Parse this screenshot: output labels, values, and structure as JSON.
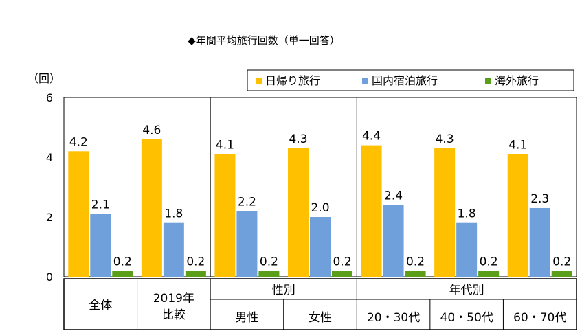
{
  "chart_data": {
    "type": "bar",
    "title": "◆年間平均旅行回数（単一回答）",
    "ylabel": "（回）",
    "ylim": [
      0,
      6
    ],
    "yticks": [
      0,
      2,
      4,
      6
    ],
    "categories": [
      "全体",
      "2019年比較",
      "男性",
      "女性",
      "20・30代",
      "40・50代",
      "60・70代"
    ],
    "series": [
      {
        "name": "日帰り旅行",
        "color": "#FFC000",
        "values": [
          4.2,
          4.6,
          4.1,
          4.3,
          4.4,
          4.3,
          4.1
        ],
        "labels": [
          "4.2",
          "4.6",
          "4.1",
          "4.3",
          "4.4",
          "4.3",
          "4.1"
        ]
      },
      {
        "name": "国内宿泊旅行",
        "color": "#6FA0DC",
        "values": [
          2.1,
          1.8,
          2.2,
          2.0,
          2.4,
          1.8,
          2.3
        ],
        "labels": [
          "2.1",
          "1.8",
          "2.2",
          "2.0",
          "2.4",
          "1.8",
          "2.3"
        ]
      },
      {
        "name": "海外旅行",
        "color": "#5A9E1A",
        "values": [
          0.2,
          0.2,
          0.2,
          0.2,
          0.2,
          0.2,
          0.2
        ],
        "labels": [
          "0.2",
          "0.2",
          "0.2",
          "0.2",
          "0.2",
          "0.2",
          "0.2"
        ]
      }
    ],
    "legend_position": "top-right",
    "category_table": {
      "cells": [
        {
          "lines": [
            "全体"
          ]
        },
        {
          "lines": [
            "2019年",
            "比較"
          ]
        }
      ],
      "groups": [
        {
          "title": "性別",
          "items": [
            "男性",
            "女性"
          ]
        },
        {
          "title": "年代別",
          "items": [
            "20・30代",
            "40・50代",
            "60・70代"
          ]
        }
      ]
    }
  }
}
